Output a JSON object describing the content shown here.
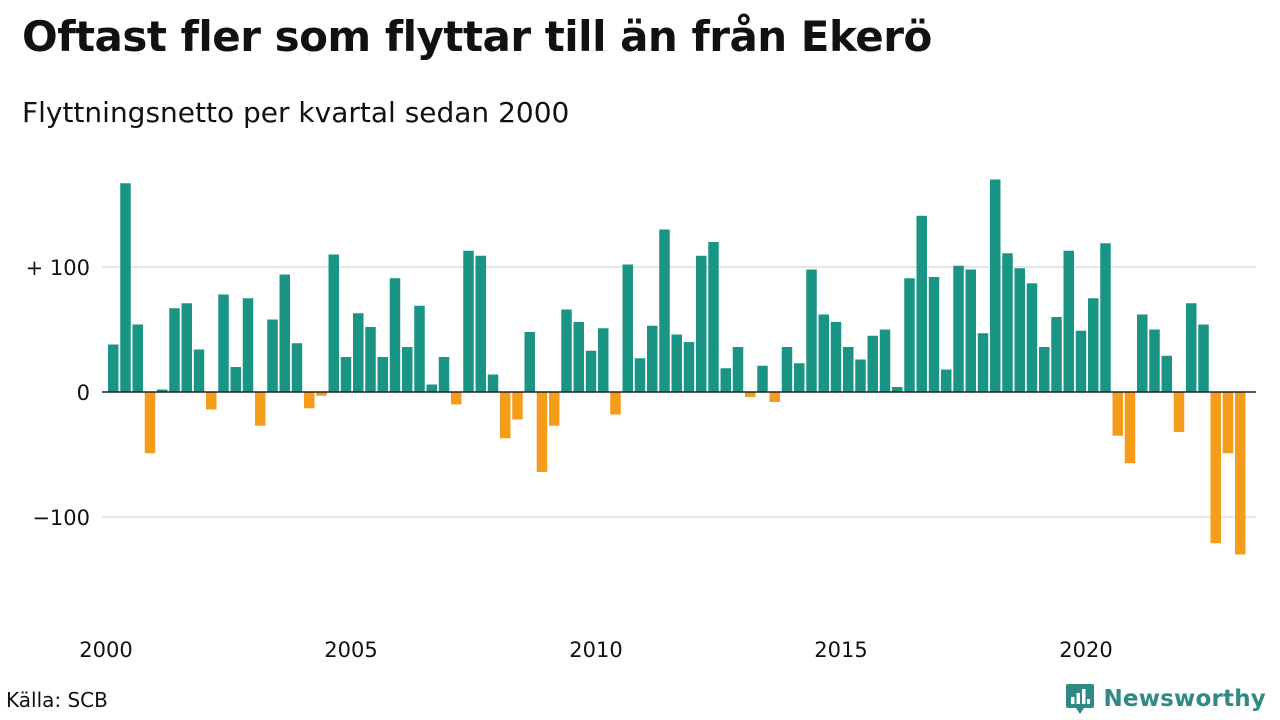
{
  "title": "Oftast fler som flyttar till än från Ekerö",
  "subtitle": "Flyttningsnetto per kvartal sedan 2000",
  "source": "Källa: SCB",
  "brand": {
    "name": "Newsworthy",
    "icon": "newsworthy-logo-icon",
    "color": "#2f8a84"
  },
  "chart_data": {
    "type": "bar",
    "ylim": [
      -140,
      180
    ],
    "yticks": [
      {
        "value": 100,
        "label": "+ 100"
      },
      {
        "value": 0,
        "label": "0"
      },
      {
        "value": -100,
        "label": "−100"
      }
    ],
    "xticks": [
      {
        "year": 2000,
        "label": "2000"
      },
      {
        "year": 2005,
        "label": "2005"
      },
      {
        "year": 2010,
        "label": "2010"
      },
      {
        "year": 2015,
        "label": "2015"
      },
      {
        "year": 2020,
        "label": "2020"
      }
    ],
    "grid": true,
    "start_year": 2000,
    "colors": {
      "positive": "#1a9585",
      "negative": "#f59c1a",
      "grid": "#dddddd"
    },
    "values": [
      38,
      167,
      54,
      -49,
      2,
      67,
      71,
      34,
      -14,
      78,
      20,
      75,
      -27,
      58,
      94,
      39,
      -13,
      -3,
      110,
      28,
      63,
      52,
      28,
      91,
      36,
      69,
      6,
      28,
      -10,
      113,
      109,
      14,
      -37,
      -22,
      48,
      -64,
      -27,
      66,
      56,
      33,
      51,
      -18,
      102,
      27,
      53,
      130,
      46,
      40,
      109,
      120,
      19,
      36,
      -4,
      21,
      -8,
      36,
      23,
      98,
      62,
      56,
      36,
      26,
      45,
      50,
      4,
      91,
      141,
      92,
      18,
      101,
      98,
      47,
      170,
      111,
      99,
      87,
      36,
      60,
      113,
      49,
      75,
      119,
      -35,
      -57,
      62,
      50,
      29,
      -32,
      71,
      54,
      -121,
      -49,
      -130
    ]
  }
}
